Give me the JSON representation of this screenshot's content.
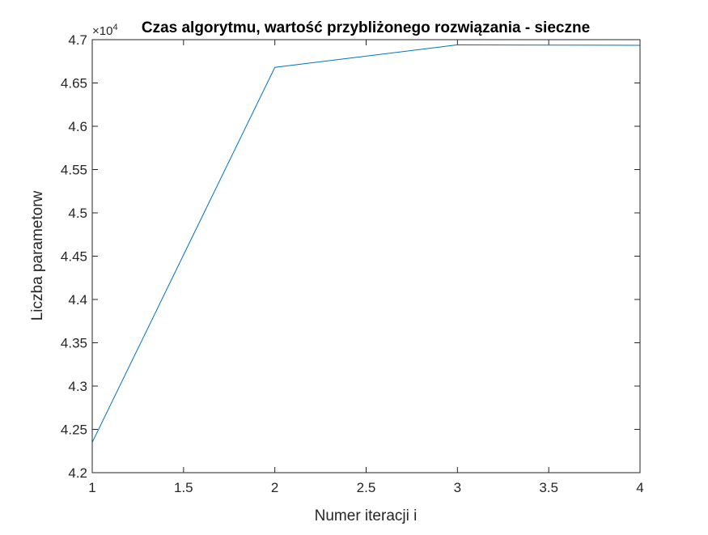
{
  "chart_data": {
    "type": "line",
    "title": "Czas algorytmu, wartość przybliżonego rozwiązania - sieczne",
    "xlabel": "Numer iteracji i",
    "ylabel": "Liczba parametorw",
    "exponent_base": "×10",
    "exponent_power": "4",
    "xlim": [
      1,
      4
    ],
    "ylim": [
      42000,
      47000
    ],
    "x_ticks": [
      1,
      1.5,
      2,
      2.5,
      3,
      3.5,
      4
    ],
    "x_tick_labels": [
      "1",
      "1.5",
      "2",
      "2.5",
      "3",
      "3.5",
      "4"
    ],
    "y_ticks": [
      42000,
      42500,
      43000,
      43500,
      44000,
      44500,
      45000,
      45500,
      46000,
      46500,
      47000
    ],
    "y_tick_labels": [
      "4.2",
      "4.25",
      "4.3",
      "4.35",
      "4.4",
      "4.45",
      "4.5",
      "4.55",
      "4.6",
      "4.65",
      "4.7"
    ],
    "grid": false,
    "series": [
      {
        "color": "#0072bd",
        "x": [
          1,
          2,
          3,
          4
        ],
        "y": [
          42350,
          46680,
          46940,
          46935
        ]
      }
    ]
  }
}
